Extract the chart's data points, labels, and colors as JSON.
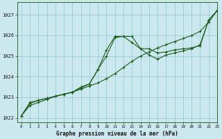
{
  "title": "Graphe pression niveau de la mer (hPa)",
  "xlim": [
    -0.5,
    23
  ],
  "ylim": [
    1021.8,
    1027.6
  ],
  "yticks": [
    1022,
    1023,
    1024,
    1025,
    1026,
    1027
  ],
  "xticks": [
    0,
    1,
    2,
    3,
    4,
    5,
    6,
    7,
    8,
    9,
    10,
    11,
    12,
    13,
    14,
    15,
    16,
    17,
    18,
    19,
    20,
    21,
    22,
    23
  ],
  "bg_color": "#cce8ef",
  "grid_color": "#99ccd6",
  "line_color": "#1e5c1e",
  "line1_x": [
    0,
    1,
    2,
    3,
    4,
    5,
    6,
    7,
    8,
    9,
    10,
    11,
    12,
    13,
    14,
    15,
    16,
    17,
    18,
    19,
    20,
    21,
    22,
    23
  ],
  "line1_y": [
    1022.1,
    1022.6,
    1022.75,
    1022.9,
    1023.05,
    1023.15,
    1023.25,
    1023.4,
    1023.55,
    1023.7,
    1023.9,
    1024.15,
    1024.45,
    1024.75,
    1025.0,
    1025.2,
    1025.4,
    1025.55,
    1025.7,
    1025.85,
    1026.0,
    1026.2,
    1026.65,
    1027.2
  ],
  "line2_x": [
    0,
    1,
    2,
    3,
    4,
    5,
    6,
    7,
    8,
    9,
    10,
    11,
    12,
    13,
    14,
    15,
    16,
    17,
    18,
    19,
    20,
    21,
    22,
    23
  ],
  "line2_y": [
    1022.1,
    1022.75,
    1022.85,
    1022.95,
    1023.05,
    1023.15,
    1023.25,
    1023.5,
    1023.65,
    1024.35,
    1025.3,
    1025.95,
    1025.95,
    1025.65,
    1025.35,
    1025.05,
    1024.85,
    1025.05,
    1025.15,
    1025.25,
    1025.35,
    1025.55,
    1026.75,
    1027.2
  ],
  "line3_x": [
    0,
    1,
    2,
    3,
    4,
    5,
    6,
    7,
    8,
    9,
    10,
    11,
    12,
    13,
    14,
    15,
    16,
    17,
    18,
    19,
    20,
    21,
    22,
    23
  ],
  "line3_y": [
    1022.1,
    1022.7,
    1022.85,
    1022.95,
    1023.05,
    1023.15,
    1023.25,
    1023.45,
    1023.65,
    1024.35,
    1025.0,
    1025.9,
    1025.95,
    1025.95,
    1025.35,
    1025.35,
    1025.15,
    1025.2,
    1025.3,
    1025.35,
    1025.4,
    1025.5,
    1026.75,
    1027.2
  ]
}
